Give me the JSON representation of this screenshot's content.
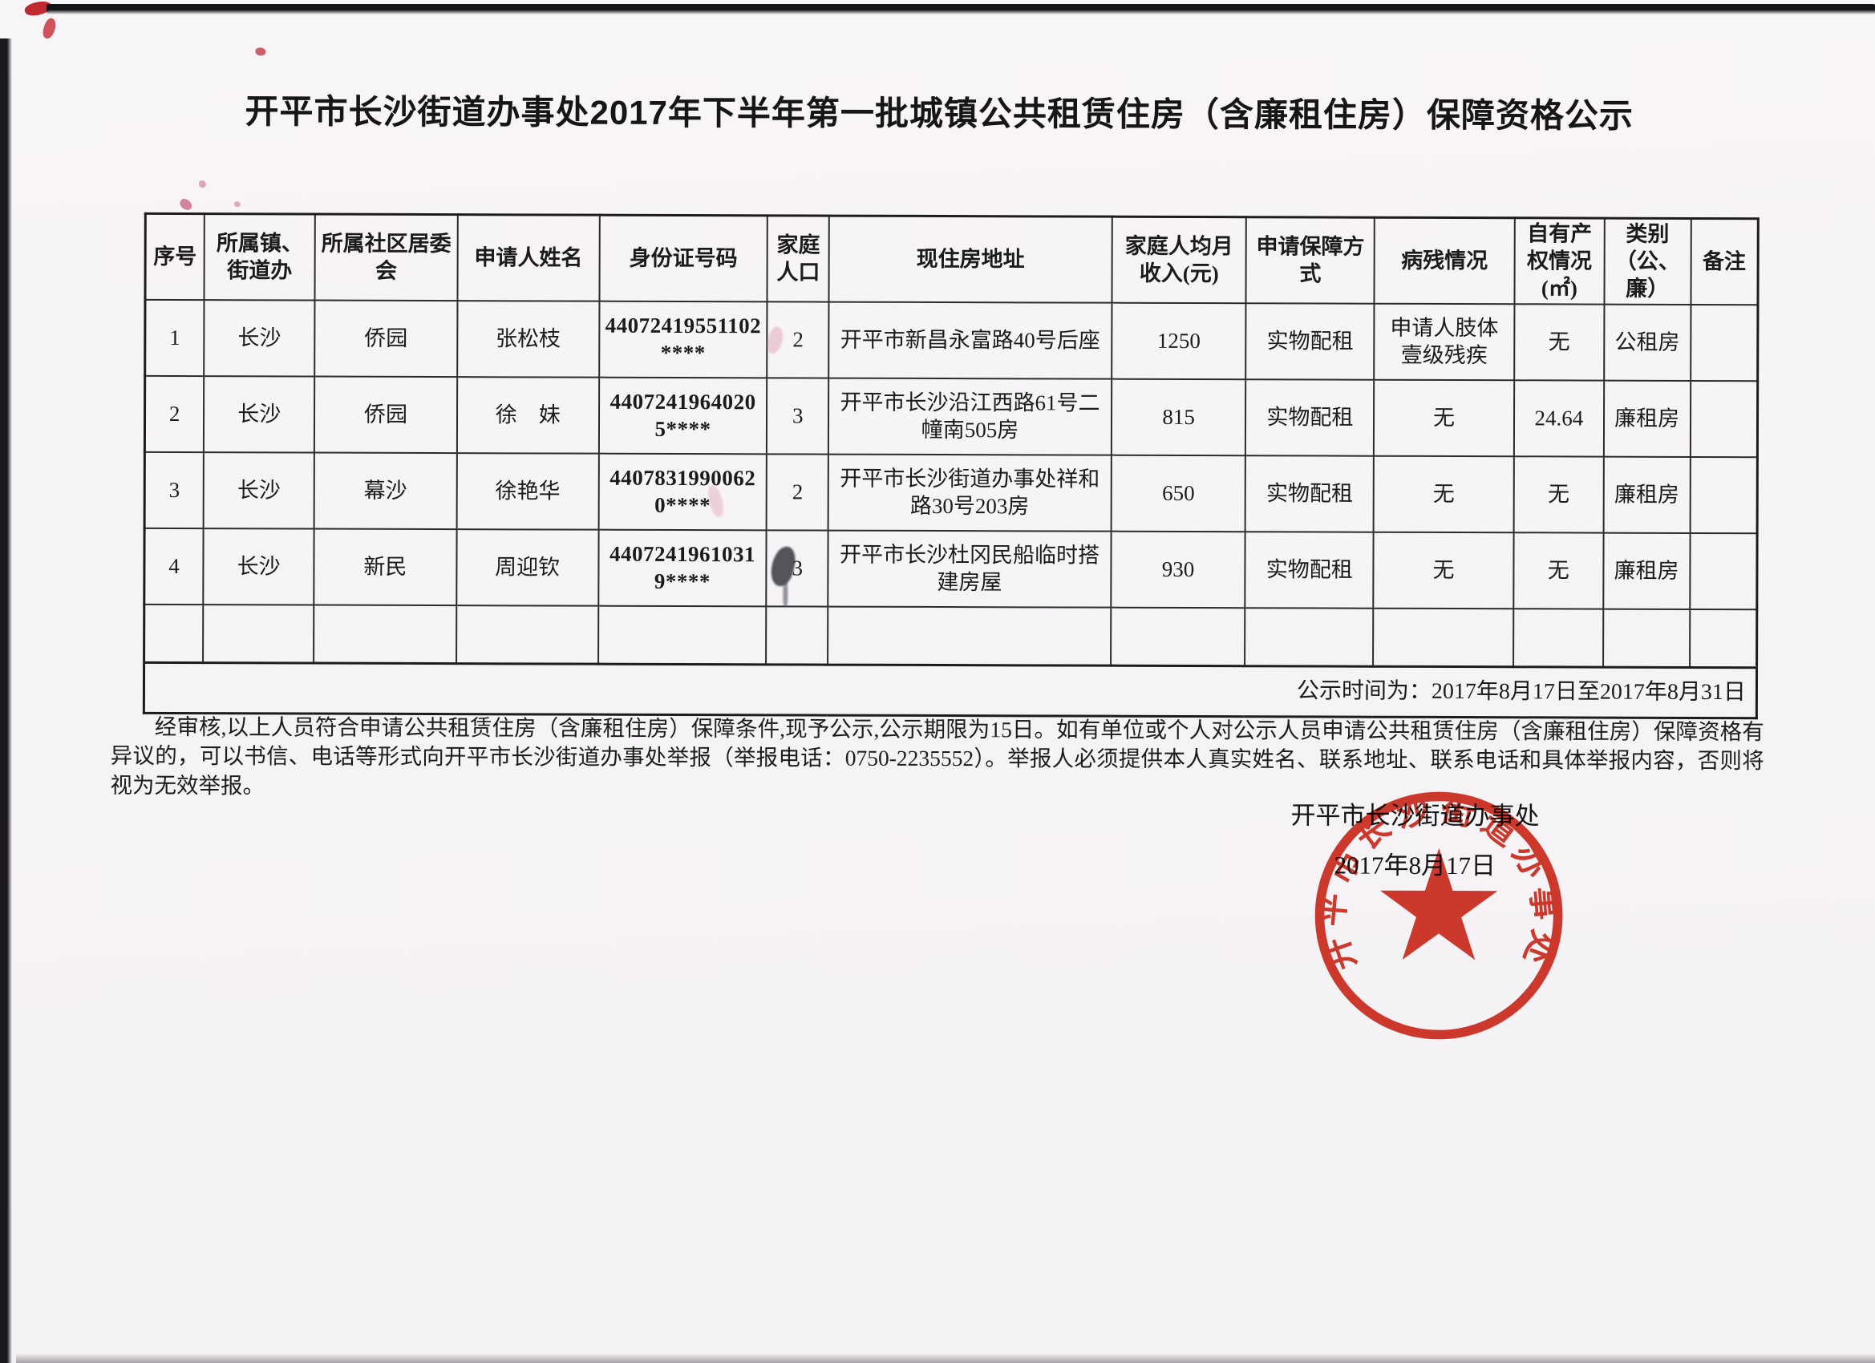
{
  "title": "开平市长沙街道办事处2017年下半年第一批城镇公共租赁住房（含廉租住房）保障资格公示",
  "table": {
    "headers": [
      "序号",
      "所属镇、街道办",
      "所属社区居委会",
      "申请人姓名",
      "身份证号码",
      "家庭人口",
      "现住房地址",
      "家庭人均月收入(元)",
      "申请保障方式",
      "病残情况",
      "自有产权情况(㎡)",
      "类别（公、廉）",
      "备注"
    ],
    "rows": [
      [
        "1",
        "长沙",
        "侨园",
        "张松枝",
        "44072419551102****",
        "2",
        "开平市新昌永富路40号后座",
        "1250",
        "实物配租",
        "申请人肢体壹级残疾",
        "无",
        "公租房",
        ""
      ],
      [
        "2",
        "长沙",
        "侨园",
        "徐　妹",
        "44072419640205****",
        "3",
        "开平市长沙沿江西路61号二幢南505房",
        "815",
        "实物配租",
        "无",
        "24.64",
        "廉租房",
        ""
      ],
      [
        "3",
        "长沙",
        "幕沙",
        "徐艳华",
        "44078319900620****",
        "2",
        "开平市长沙街道办事处祥和路30号203房",
        "650",
        "实物配租",
        "无",
        "无",
        "廉租房",
        ""
      ],
      [
        "4",
        "长沙",
        "新民",
        "周迎钦",
        "44072419610319****",
        "3",
        "开平市长沙杜冈民船临时搭建房屋",
        "930",
        "实物配租",
        "无",
        "无",
        "廉租房",
        ""
      ],
      [
        "",
        "",
        "",
        "",
        "",
        "",
        "",
        "",
        "",
        "",
        "",
        "",
        ""
      ]
    ],
    "footer_note": "公示时间为：2017年8月17日至2017年8月31日"
  },
  "body_text": "经审核,以上人员符合申请公共租赁住房（含廉租住房）保障条件,现予公示,公示期限为15日。如有单位或个人对公示人员申请公共租赁住房（含廉租住房）保障资格有异议的，可以书信、电话等形式向开平市长沙街道办事处举报（举报电话：0750-2235552）。举报人必须提供本人真实姓名、联系地址、联系电话和具体举报内容，否则将视为无效举报。",
  "signature": {
    "org": "开平市长沙街道办事处",
    "date": "2017年8月17日"
  },
  "stamp": {
    "text": "开平市长沙街道办事处",
    "color": "#c9281a"
  }
}
